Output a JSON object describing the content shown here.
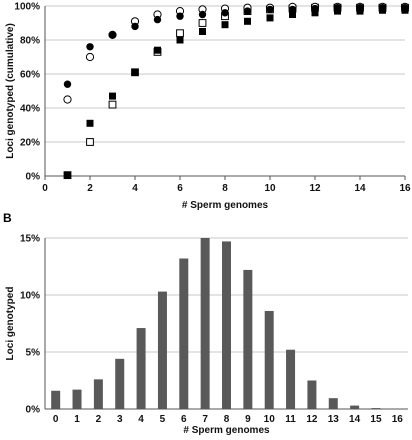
{
  "chart_data": [
    {
      "panel_label": "",
      "type": "scatter",
      "xlabel": "# Sperm genomes",
      "ylabel": "Loci genotyped (cumulative)",
      "xlim": [
        0,
        16
      ],
      "ylim": [
        0,
        100
      ],
      "x_ticks": [
        "0",
        "2",
        "4",
        "6",
        "8",
        "10",
        "12",
        "14",
        "16"
      ],
      "y_ticks": [
        "0%",
        "20%",
        "40%",
        "60%",
        "80%",
        "100%"
      ],
      "grid": "horizontal",
      "series": [
        {
          "marker": "circle-filled",
          "points": [
            [
              1,
              54
            ],
            [
              2,
              76
            ],
            [
              3,
              83
            ],
            [
              4,
              88
            ],
            [
              5,
              92
            ],
            [
              6,
              94
            ],
            [
              7,
              95
            ],
            [
              8,
              96
            ],
            [
              9,
              97
            ],
            [
              10,
              98
            ],
            [
              11,
              98
            ],
            [
              12,
              98.5
            ],
            [
              13,
              99
            ],
            [
              14,
              99
            ],
            [
              15,
              99
            ],
            [
              16,
              99
            ]
          ]
        },
        {
          "marker": "circle-open",
          "points": [
            [
              1,
              45
            ],
            [
              2,
              70
            ],
            [
              3,
              83
            ],
            [
              4,
              91
            ],
            [
              5,
              95
            ],
            [
              6,
              97
            ],
            [
              7,
              98
            ],
            [
              8,
              98.5
            ],
            [
              9,
              99
            ],
            [
              10,
              99
            ],
            [
              11,
              99.5
            ],
            [
              12,
              99.5
            ],
            [
              13,
              99.5
            ],
            [
              14,
              99.5
            ],
            [
              15,
              99.5
            ],
            [
              16,
              99.5
            ]
          ]
        },
        {
          "marker": "square-filled",
          "points": [
            [
              1,
              0.5
            ],
            [
              2,
              31
            ],
            [
              3,
              47
            ],
            [
              4,
              61
            ],
            [
              5,
              74
            ],
            [
              6,
              80
            ],
            [
              7,
              85
            ],
            [
              8,
              89
            ],
            [
              9,
              91
            ],
            [
              10,
              93
            ],
            [
              11,
              95
            ],
            [
              12,
              96
            ],
            [
              13,
              97
            ],
            [
              14,
              97
            ],
            [
              15,
              97.5
            ],
            [
              16,
              97.5
            ]
          ]
        },
        {
          "marker": "square-open",
          "points": [
            [
              1,
              0.5
            ],
            [
              2,
              20
            ],
            [
              3,
              42
            ],
            [
              4,
              61
            ],
            [
              5,
              73
            ],
            [
              6,
              84
            ],
            [
              7,
              90
            ],
            [
              8,
              94
            ],
            [
              9,
              97
            ],
            [
              10,
              98
            ],
            [
              11,
              98.5
            ],
            [
              12,
              99
            ],
            [
              13,
              99
            ],
            [
              14,
              99
            ],
            [
              15,
              99
            ],
            [
              16,
              99
            ]
          ]
        }
      ]
    },
    {
      "panel_label": "B",
      "type": "bar",
      "xlabel": "# Sperm genomes",
      "ylabel": "Loci genotyped",
      "categories": [
        "0",
        "1",
        "2",
        "3",
        "4",
        "5",
        "6",
        "7",
        "8",
        "9",
        "10",
        "11",
        "12",
        "13",
        "14",
        "15",
        "16"
      ],
      "values": [
        1.6,
        1.7,
        2.6,
        4.4,
        7.1,
        10.3,
        13.2,
        15.0,
        14.7,
        12.2,
        8.6,
        5.2,
        2.5,
        0.95,
        0.3,
        0.08,
        0.03
      ],
      "ylim": [
        0,
        15
      ],
      "y_ticks": [
        "0%",
        "5%",
        "10%",
        "15%"
      ],
      "grid": "horizontal",
      "bar_color": "#595959"
    }
  ]
}
